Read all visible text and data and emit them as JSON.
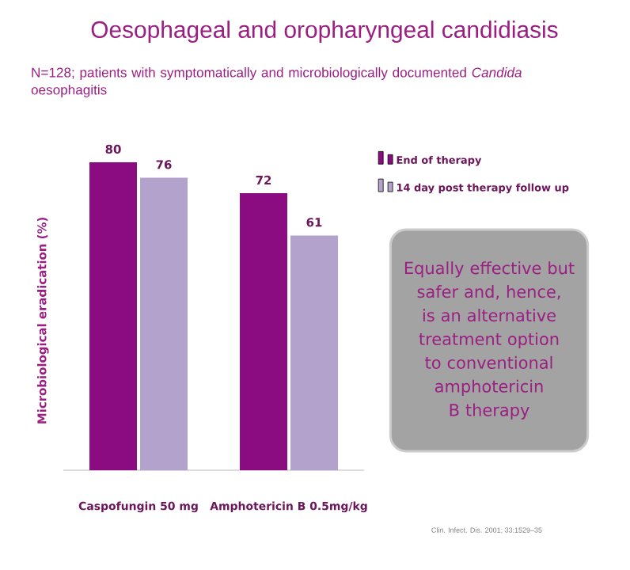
{
  "chart_data": {
    "type": "bar",
    "title": "Oesophageal and oropharyngeal candidiasis",
    "subtitle": "N=128; patients with symptomatically and microbiologically documented *Candida* oesophagitis",
    "ylabel": "Microbiological eradication (%)",
    "categories": [
      "Caspofungin 50 mg",
      "Amphotericin B 0.5mg/kg"
    ],
    "series": [
      {
        "name": "End of therapy",
        "color": "#8b0c80",
        "values": [
          80,
          72
        ]
      },
      {
        "name": "14 day post therapy follow up",
        "color": "#b3a2cc",
        "values": [
          76,
          61
        ]
      }
    ],
    "data_labels": true,
    "legend": "right",
    "tick_labels": "x",
    "annotations": [
      "Equally effective but safer and, hence, is an alternative treatment option to conventional amphotericin B therapy",
      "Clin. Infect. Dis. 2001; 33:1529–35"
    ]
  }
}
